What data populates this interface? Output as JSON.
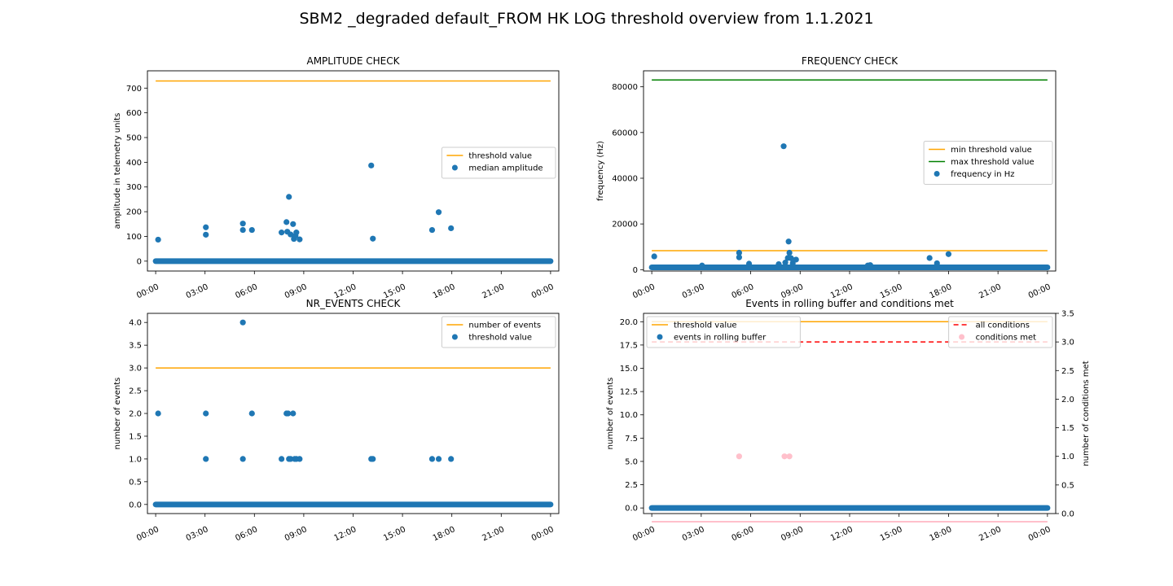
{
  "figure_title": "SBM2 _degraded default_FROM HK LOG threshold overview from 1.1.2021",
  "colors": {
    "blue": "#1f77b4",
    "orange": "#ffa500",
    "green": "#008000",
    "red": "#ff0000",
    "pink": "#ffc0cb"
  },
  "chart_data": [
    {
      "id": "amp",
      "type": "scatter",
      "title": "AMPLITUDE CHECK",
      "xlabel": "",
      "ylabel": "amplitude in telemetry units",
      "xlim": [
        -0.5,
        24.5
      ],
      "ylim": [
        -40,
        770
      ],
      "xticks": [
        0,
        3,
        6,
        9,
        12,
        15,
        18,
        21,
        24
      ],
      "xtick_labels": [
        "00:00",
        "03:00",
        "06:00",
        "09:00",
        "12:00",
        "15:00",
        "18:00",
        "21:00",
        "00:00"
      ],
      "yticks": [
        0,
        100,
        200,
        300,
        400,
        500,
        600,
        700
      ],
      "ytick_labels": [
        "0",
        "100",
        "200",
        "300",
        "400",
        "500",
        "600",
        "700"
      ],
      "legend_position": "center-right",
      "lines": [
        {
          "name": "threshold value",
          "color": "#ffa500",
          "dash": "",
          "x": [
            0,
            24
          ],
          "y": [
            729,
            729
          ]
        }
      ],
      "baseline": {
        "color": "#1f77b4",
        "y": 0,
        "x_from": 0,
        "x_to": 24
      },
      "points": {
        "name": "median amplitude",
        "color": "#1f77b4",
        "x": [
          0.15,
          3.05,
          3.05,
          5.3,
          5.3,
          5.85,
          7.65,
          7.95,
          8.0,
          8.1,
          8.2,
          8.35,
          8.4,
          8.5,
          8.55,
          8.75,
          13.1,
          13.2,
          16.8,
          17.2,
          17.95
        ],
        "y": [
          87,
          137,
          107,
          152,
          126,
          126,
          116,
          158,
          119,
          260,
          108,
          150,
          90,
          103,
          116,
          88,
          387,
          91,
          126,
          198,
          133
        ]
      }
    },
    {
      "id": "freq",
      "type": "scatter",
      "title": "FREQUENCY CHECK",
      "xlabel": "",
      "ylabel": "frequency (Hz)",
      "xlim": [
        -0.5,
        24.5
      ],
      "ylim": [
        -600,
        87000
      ],
      "xticks": [
        0,
        3,
        6,
        9,
        12,
        15,
        18,
        21,
        24
      ],
      "xtick_labels": [
        "00:00",
        "03:00",
        "06:00",
        "09:00",
        "12:00",
        "15:00",
        "18:00",
        "21:00",
        "00:00"
      ],
      "yticks": [
        0,
        20000,
        40000,
        60000,
        80000
      ],
      "ytick_labels": [
        "0",
        "20000",
        "40000",
        "60000",
        "80000"
      ],
      "legend_position": "center-right",
      "lines": [
        {
          "name": "min threshold value",
          "color": "#ffa500",
          "dash": "",
          "x": [
            0,
            24
          ],
          "y": [
            8300,
            8300
          ]
        },
        {
          "name": "max threshold value",
          "color": "#008000",
          "dash": "",
          "x": [
            0,
            24
          ],
          "y": [
            83000,
            83000
          ]
        }
      ],
      "baseline": {
        "color": "#1f77b4",
        "y": 1000,
        "x_from": 0,
        "x_to": 24
      },
      "points": {
        "name": "frequency in Hz",
        "color": "#1f77b4",
        "x": [
          0.15,
          3.05,
          5.3,
          5.3,
          5.9,
          7.7,
          8.0,
          8.1,
          8.25,
          8.3,
          8.35,
          8.45,
          8.55,
          8.75,
          13.1,
          13.25,
          16.85,
          17.3,
          18.0
        ],
        "y": [
          5800,
          1800,
          7400,
          5400,
          2600,
          2400,
          54000,
          3100,
          5100,
          12300,
          7400,
          5000,
          2800,
          4400,
          1800,
          2000,
          5100,
          2800,
          6800
        ]
      }
    },
    {
      "id": "nr",
      "type": "scatter",
      "title": "NR_EVENTS CHECK",
      "xlabel": "",
      "ylabel": "number of events",
      "xlim": [
        -0.5,
        24.5
      ],
      "ylim": [
        -0.2,
        4.2
      ],
      "xticks": [
        0,
        3,
        6,
        9,
        12,
        15,
        18,
        21,
        24
      ],
      "xtick_labels": [
        "00:00",
        "03:00",
        "06:00",
        "09:00",
        "12:00",
        "15:00",
        "18:00",
        "21:00",
        "00:00"
      ],
      "yticks": [
        0,
        0.5,
        1,
        1.5,
        2,
        2.5,
        3,
        3.5,
        4
      ],
      "ytick_labels": [
        "0.0",
        "0.5",
        "1.0",
        "1.5",
        "2.0",
        "2.5",
        "3.0",
        "3.5",
        "4.0"
      ],
      "legend_position": "top-right",
      "lines": [
        {
          "name": "number of events",
          "color": "#ffa500",
          "dash": "",
          "x": [
            0,
            24
          ],
          "y": [
            3,
            3
          ]
        }
      ],
      "baseline": {
        "color": "#1f77b4",
        "y": 0,
        "x_from": 0,
        "x_to": 24
      },
      "points": {
        "name": "threshold value",
        "color": "#1f77b4",
        "x": [
          0.15,
          3.05,
          3.05,
          5.3,
          5.3,
          5.85,
          7.65,
          7.95,
          8.05,
          8.1,
          8.2,
          8.35,
          8.45,
          8.55,
          8.75,
          13.1,
          13.2,
          16.8,
          17.2,
          17.95
        ],
        "y": [
          2,
          2,
          1,
          4,
          1,
          2,
          1,
          2,
          2,
          1,
          1,
          2,
          1,
          1,
          1,
          1,
          1,
          1,
          1,
          1
        ]
      }
    },
    {
      "id": "roll",
      "type": "scatter",
      "title": "Events in rolling buffer and conditions met",
      "xlabel": "",
      "ylabel": "number of events",
      "ylabel_right": "number of conditions met",
      "xlim": [
        -0.5,
        24.5
      ],
      "ylim": [
        -0.6,
        20.9
      ],
      "ylim_right": [
        0,
        3.5
      ],
      "xticks": [
        0,
        3,
        6,
        9,
        12,
        15,
        18,
        21,
        24
      ],
      "xtick_labels": [
        "00:00",
        "03:00",
        "06:00",
        "09:00",
        "12:00",
        "15:00",
        "18:00",
        "21:00",
        "00:00"
      ],
      "yticks": [
        0,
        2.5,
        5,
        7.5,
        10,
        12.5,
        15,
        17.5,
        20
      ],
      "ytick_labels": [
        "0.0",
        "2.5",
        "5.0",
        "7.5",
        "10.0",
        "12.5",
        "15.0",
        "17.5",
        "20.0"
      ],
      "yticks_right": [
        0,
        0.5,
        1,
        1.5,
        2,
        2.5,
        3,
        3.5
      ],
      "ytick_labels_right": [
        "0.0",
        "0.5",
        "1.0",
        "1.5",
        "2.0",
        "2.5",
        "3.0",
        "3.5"
      ],
      "legend_position": "top-left",
      "legend_right_position": "top-right",
      "lines": [
        {
          "name": "threshold value",
          "color": "#ffa500",
          "dash": "",
          "x": [
            0,
            24
          ],
          "y": [
            20,
            20
          ]
        }
      ],
      "lines_right": [
        {
          "name": "all conditions",
          "color": "#ff0000",
          "dash": "6,4",
          "x": [
            0,
            24
          ],
          "y": [
            3,
            3
          ]
        }
      ],
      "extra_right_line": {
        "color": "#ffc0cb",
        "y": 0,
        "x_from": 0,
        "x_to": 24
      },
      "baseline": {
        "color": "#1f77b4",
        "y": 0,
        "x_from": 0,
        "x_to": 24
      },
      "points": {
        "name": "events in rolling buffer",
        "color": "#1f77b4",
        "x": [],
        "y": []
      },
      "points_right": {
        "name": "conditions met",
        "color": "#ffc0cb",
        "x": [
          5.3,
          8.05,
          8.35
        ],
        "y": [
          1,
          1,
          1
        ]
      }
    }
  ]
}
